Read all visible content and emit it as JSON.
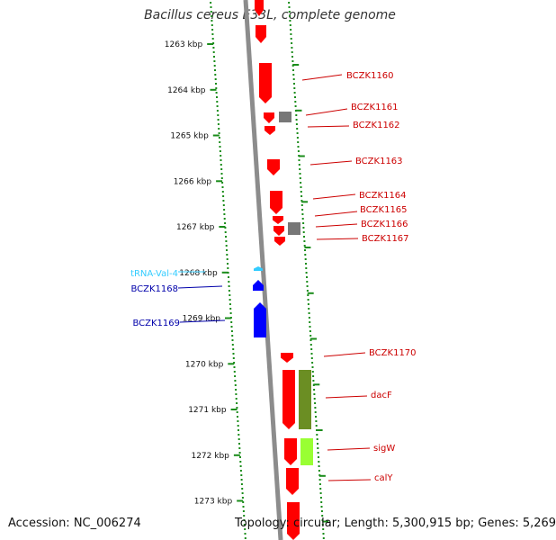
{
  "title": "Bacillus cereus E33L, complete genome",
  "accession": "Accession: NC_006274",
  "topology": "Topology: circular; Length: 5,300,915 bp; Genes: 5,269",
  "ticks": [
    {
      "label": "1263 kbp",
      "kbp": 1263
    },
    {
      "label": "1264 kbp",
      "kbp": 1264
    },
    {
      "label": "1265 kbp",
      "kbp": 1265
    },
    {
      "label": "1266 kbp",
      "kbp": 1266
    },
    {
      "label": "1267 kbp",
      "kbp": 1267
    },
    {
      "label": "1268 kbp",
      "kbp": 1268
    },
    {
      "label": "1269 kbp",
      "kbp": 1269
    },
    {
      "label": "1270 kbp",
      "kbp": 1270
    },
    {
      "label": "1271 kbp",
      "kbp": 1271
    },
    {
      "label": "1272 kbp",
      "kbp": 1272
    },
    {
      "label": "1273 kbp",
      "kbp": 1273
    }
  ],
  "colors": {
    "forward_gene": "#ff0000",
    "reverse_gene": "#0000ff",
    "trna": "#33ccff",
    "other_feature": "#777777",
    "feature_olive": "#6b8e23",
    "feature_lime": "#99ff33",
    "tick_mark": "#1a8c1a",
    "backbone": "#8c8c8c",
    "right_label": "#cc0000",
    "left_label": "#0000aa"
  },
  "right_labels": [
    "BCZK1160",
    "BCZK1161",
    "BCZK1162",
    "BCZK1163",
    "BCZK1164",
    "BCZK1165",
    "BCZK1166",
    "BCZK1167",
    "BCZK1170",
    "dacF",
    "sigW",
    "calY"
  ],
  "left_labels": [
    {
      "text": "tRNA-Val-4",
      "type": "trna"
    },
    {
      "text": "BCZK1168",
      "type": "gene"
    },
    {
      "text": "BCZK1169",
      "type": "gene"
    }
  ]
}
